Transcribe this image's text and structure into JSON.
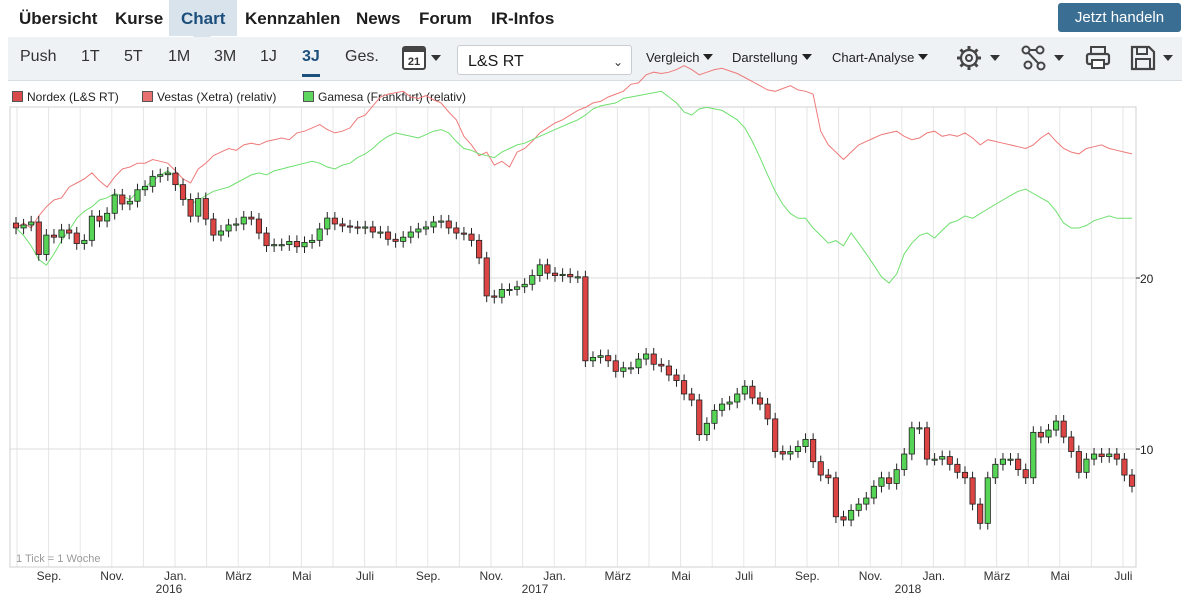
{
  "nav": {
    "items": [
      "Übersicht",
      "Kurse",
      "Chart",
      "Kennzahlen",
      "News",
      "Forum",
      "IR-Infos"
    ],
    "active": "Chart",
    "cta": "Jetzt handeln"
  },
  "toolbar": {
    "ranges": [
      "Push",
      "1T",
      "5T",
      "1M",
      "3M",
      "1J",
      "3J",
      "Ges."
    ],
    "active_range": "3J",
    "calendar_day": "21",
    "exchange_select": "L&S RT",
    "dropdowns": [
      "Vergleich",
      "Darstellung",
      "Chart-Analyse"
    ],
    "icons": [
      "calendar-icon",
      "gear-icon",
      "share-icon",
      "print-icon",
      "save-icon"
    ]
  },
  "chart_data": {
    "type": "candlestick",
    "note": "1 Tick = 1 Woche",
    "legend": [
      {
        "label": "Nordex (L&S RT)",
        "color": "#d94a4a"
      },
      {
        "label": "Vestas (Xetra) (relativ)",
        "color": "#e87070"
      },
      {
        "label": "Gamesa (Frankfurt) (relativ)",
        "color": "#5fd65f"
      }
    ],
    "x_ticks": [
      "Sep.",
      "Nov.",
      "Jan.",
      "März",
      "Mai",
      "Juli",
      "Sep.",
      "Nov.",
      "Jan.",
      "März",
      "Mai",
      "Juli",
      "Sep.",
      "Nov.",
      "Jan.",
      "März",
      "Mai",
      "Juli"
    ],
    "year_labels": [
      "2016",
      "2017",
      "2018"
    ],
    "y_ticks": [
      10,
      20
    ],
    "y_scale": "log",
    "ylim": [
      6.2,
      40
    ],
    "up_color": "#55d455",
    "down_color": "#dd4444",
    "nordex_close": [
      24.5,
      24.8,
      25.1,
      22.0,
      23.8,
      23.6,
      24.3,
      24.0,
      23.0,
      23.3,
      25.7,
      25.2,
      26.0,
      28.0,
      27.0,
      27.3,
      28.6,
      29.0,
      30.2,
      30.4,
      30.6,
      29.2,
      27.5,
      25.7,
      27.6,
      25.4,
      23.8,
      24.2,
      24.8,
      24.9,
      25.6,
      25.4,
      24.0,
      22.8,
      22.9,
      22.9,
      23.2,
      22.7,
      23.1,
      23.3,
      24.4,
      25.5,
      24.9,
      24.7,
      24.6,
      24.5,
      24.6,
      24.1,
      24.1,
      23.4,
      23.2,
      23.6,
      24.1,
      24.4,
      24.6,
      25.1,
      25.2,
      24.5,
      24.0,
      23.9,
      23.3,
      21.7,
      18.6,
      18.5,
      19.1,
      19.1,
      19.3,
      19.5,
      20.2,
      21.1,
      20.4,
      20.2,
      20.3,
      20.1,
      20.1,
      14.3,
      14.5,
      14.6,
      14.3,
      13.7,
      13.9,
      13.9,
      14.4,
      14.7,
      14.1,
      14.0,
      13.5,
      13.2,
      12.5,
      12.2,
      10.6,
      11.1,
      11.7,
      12.0,
      12.1,
      12.5,
      12.9,
      12.3,
      12.0,
      11.3,
      9.9,
      9.8,
      9.9,
      10.1,
      10.4,
      9.5,
      9.0,
      8.9,
      7.6,
      7.5,
      7.8,
      8.0,
      8.2,
      8.6,
      8.9,
      8.7,
      9.2,
      9.8,
      10.9,
      10.9,
      9.6,
      9.6,
      9.7,
      9.4,
      9.1,
      8.9,
      8.0,
      7.4,
      8.9,
      9.4,
      9.6,
      9.6,
      9.2,
      8.9,
      10.7,
      10.5,
      10.8,
      11.2,
      10.5,
      9.9,
      9.1,
      9.6,
      9.8,
      9.7,
      9.8,
      9.6,
      9.0,
      8.6
    ]
  }
}
